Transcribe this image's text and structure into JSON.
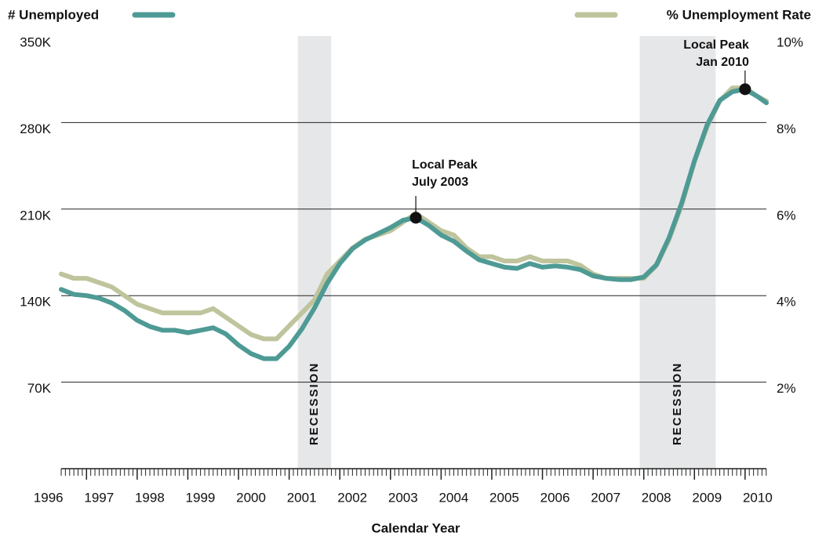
{
  "chart_data": {
    "type": "line",
    "x_label": "Calendar Year",
    "xlim": [
      1996.5,
      2010.42
    ],
    "xticks": [
      1996,
      1997,
      1998,
      1999,
      2000,
      2001,
      2002,
      2003,
      2004,
      2005,
      2006,
      2007,
      2008,
      2009,
      2010
    ],
    "minor_ticks_per_year": 12,
    "ylim": [
      0,
      350000
    ],
    "yticks": [
      {
        "value": 70000,
        "label": "70K"
      },
      {
        "value": 140000,
        "label": "140K"
      },
      {
        "value": 210000,
        "label": "210K"
      },
      {
        "value": 280000,
        "label": "280K"
      },
      {
        "value": 350000,
        "label": "350K"
      }
    ],
    "y2lim": [
      0,
      10
    ],
    "y2ticks": [
      {
        "value": 2,
        "label": "2%"
      },
      {
        "value": 4,
        "label": "4%"
      },
      {
        "value": 6,
        "label": "6%"
      },
      {
        "value": 8,
        "label": "8%"
      },
      {
        "value": 10,
        "label": "10%"
      }
    ],
    "grid": true,
    "x": [
      1996.5,
      1996.75,
      1997,
      1997.25,
      1997.5,
      1997.75,
      1998,
      1998.25,
      1998.5,
      1998.75,
      1999,
      1999.25,
      1999.5,
      1999.75,
      2000,
      2000.25,
      2000.5,
      2000.75,
      2001,
      2001.25,
      2001.5,
      2001.75,
      2002,
      2002.25,
      2002.5,
      2002.75,
      2003,
      2003.25,
      2003.5,
      2003.75,
      2004,
      2004.25,
      2004.5,
      2004.75,
      2005,
      2005.25,
      2005.5,
      2005.75,
      2006,
      2006.25,
      2006.5,
      2006.75,
      2007,
      2007.25,
      2007.5,
      2007.75,
      2008,
      2008.25,
      2008.5,
      2008.75,
      2009,
      2009.25,
      2009.5,
      2009.75,
      2010,
      2010.25,
      2010.42
    ],
    "series": [
      {
        "name": "# Unemployed",
        "color": "#4e9a95",
        "axis": "y",
        "values": [
          145000,
          141000,
          140000,
          138000,
          134000,
          128000,
          120000,
          115000,
          112000,
          112000,
          110000,
          112000,
          114000,
          109000,
          100000,
          93000,
          89000,
          89000,
          99000,
          113000,
          130000,
          150000,
          166000,
          178000,
          185000,
          190000,
          195000,
          201000,
          203000,
          197000,
          189000,
          184000,
          176000,
          169000,
          166000,
          163000,
          162000,
          166000,
          163000,
          164000,
          163000,
          161000,
          156000,
          154000,
          153000,
          153000,
          155000,
          165000,
          187000,
          215000,
          249000,
          278000,
          298000,
          305000,
          307000,
          301000,
          296000
        ]
      },
      {
        "name": "% Unemployment Rate",
        "color": "#bfc49c",
        "axis": "y2",
        "values": [
          4.5,
          4.4,
          4.4,
          4.3,
          4.2,
          4.0,
          3.8,
          3.7,
          3.6,
          3.6,
          3.6,
          3.6,
          3.7,
          3.5,
          3.3,
          3.1,
          3.0,
          3.0,
          3.3,
          3.6,
          3.9,
          4.5,
          4.8,
          5.1,
          5.3,
          5.4,
          5.5,
          5.7,
          5.9,
          5.7,
          5.5,
          5.4,
          5.1,
          4.9,
          4.9,
          4.8,
          4.8,
          4.9,
          4.8,
          4.8,
          4.8,
          4.7,
          4.5,
          4.4,
          4.4,
          4.4,
          4.4,
          4.7,
          5.3,
          6.1,
          7.1,
          7.9,
          8.5,
          8.8,
          8.8,
          8.6,
          8.5
        ]
      }
    ],
    "recessions": [
      {
        "label": "RECESSION",
        "start": 2001.17,
        "end": 2001.83
      },
      {
        "label": "RECESSION",
        "start": 2007.92,
        "end": 2009.42
      }
    ],
    "annotations": [
      {
        "lines": [
          "Local Peak",
          "July 2003"
        ],
        "x": 2003.5,
        "y": 203000
      },
      {
        "lines": [
          "Local Peak",
          "Jan 2010"
        ],
        "x": 2010,
        "y": 307000
      }
    ]
  }
}
